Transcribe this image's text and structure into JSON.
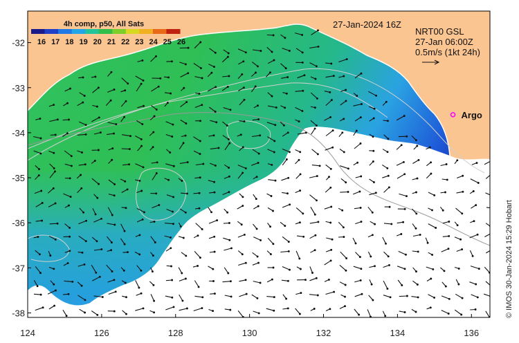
{
  "colorbar": {
    "title": "4h comp, p50, All Sats",
    "labels": [
      "16",
      "17",
      "18",
      "19",
      "20",
      "21",
      "22",
      "23",
      "24",
      "25",
      "26"
    ],
    "colors": [
      "#1a1a8c",
      "#1f3fc8",
      "#1e78e6",
      "#22a6e8",
      "#22c49a",
      "#2fbf4a",
      "#7ccf2a",
      "#d8d820",
      "#f0b020",
      "#e86a18",
      "#c02010"
    ]
  },
  "header": {
    "date": "27-Jan-2024 16Z",
    "product": "NRT00 GSL",
    "current_time": "27-Jan 06:00Z",
    "scale": "0.5m/s (1kt 24h)"
  },
  "argo": {
    "label": "Argo",
    "lon": 135.5,
    "lat": -33.6,
    "color": "#ff00ff"
  },
  "credit": "© IMOS 30-Jan-2024 15:29 Hobart",
  "axes": {
    "x_ticks": [
      "124",
      "126",
      "128",
      "130",
      "132",
      "134",
      "136"
    ],
    "y_ticks": [
      "-32",
      "-33",
      "-34",
      "-35",
      "-36",
      "-37",
      "-38"
    ],
    "xlim": [
      124,
      136.5
    ],
    "ylim": [
      -38.1,
      -31.3
    ]
  },
  "colors": {
    "land": "#fbc591",
    "no_data": "#ffffff",
    "contour": "#cccccc",
    "arrow": "#111111"
  }
}
